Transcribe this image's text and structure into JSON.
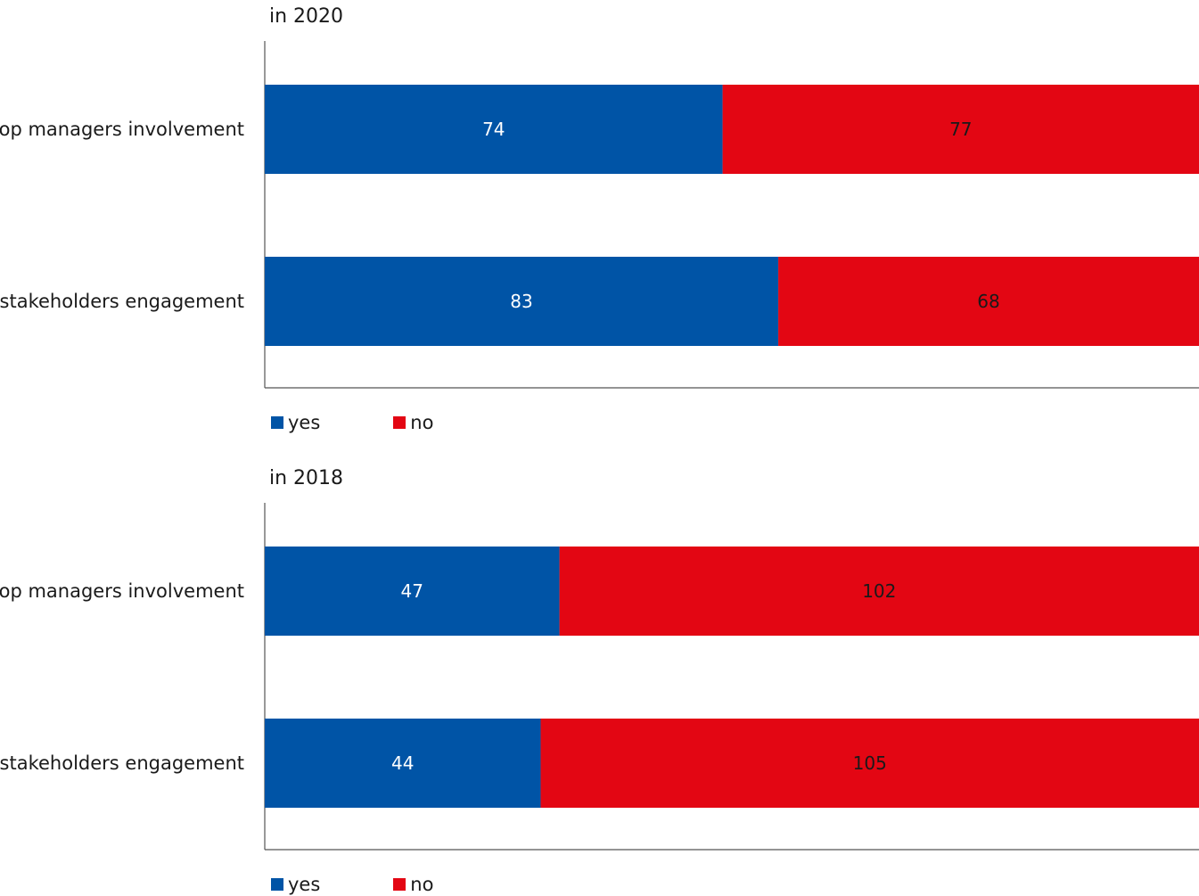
{
  "colors": {
    "yes": "#0054a6",
    "no": "#e30613"
  },
  "legend": {
    "yes": "yes",
    "no": "no"
  },
  "chart_data": [
    {
      "type": "bar",
      "orientation": "horizontal",
      "stacked": true,
      "title": "in 2020",
      "categories": [
        "top managers involvement",
        "stakeholders engagement"
      ],
      "series": [
        {
          "name": "yes",
          "values": [
            74,
            83
          ]
        },
        {
          "name": "no",
          "values": [
            77,
            68
          ]
        }
      ],
      "legend_position": "bottom-left",
      "grid": false
    },
    {
      "type": "bar",
      "orientation": "horizontal",
      "stacked": true,
      "title": "in 2018",
      "categories": [
        "top managers involvement",
        "stakeholders engagement"
      ],
      "series": [
        {
          "name": "yes",
          "values": [
            47,
            44
          ]
        },
        {
          "name": "no",
          "values": [
            102,
            105
          ]
        }
      ],
      "legend_position": "bottom-left",
      "grid": false
    }
  ]
}
